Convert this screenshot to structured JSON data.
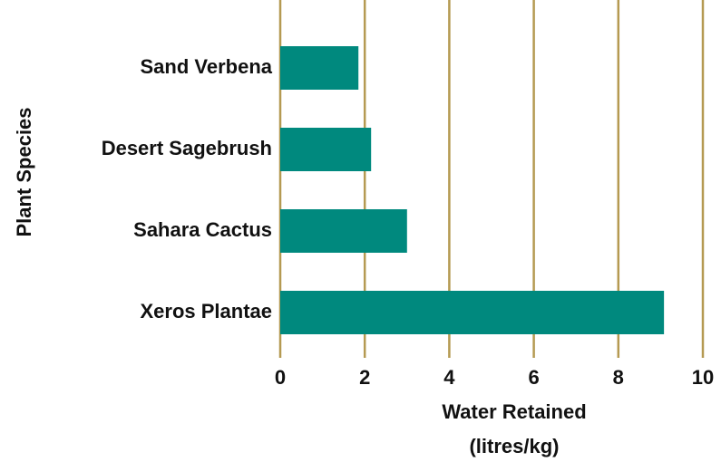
{
  "chart_data": {
    "type": "barh",
    "ylabel": "Plant Species",
    "xlabel": [
      "Water Retained",
      "(litres/kg)"
    ],
    "categories": [
      "Sand Verbena",
      "Desert Sagebrush",
      "Sahara Cactus",
      "Xeros Plantae"
    ],
    "values": [
      1.85,
      2.15,
      3.0,
      9.08
    ],
    "color": "#00897e",
    "xlim": [
      0,
      10
    ],
    "xticks": [
      0,
      2,
      4,
      6,
      8,
      10
    ],
    "grid": true,
    "grid_color": "#b59a52"
  }
}
